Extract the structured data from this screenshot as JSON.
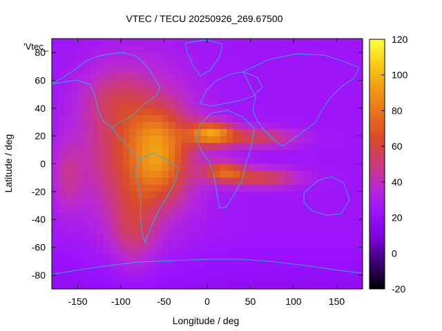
{
  "chart_data": {
    "type": "heatmap",
    "title": "VTEC / TECU 20250926_269.67500",
    "xlabel": "Longitude / deg",
    "ylabel": "Latitude / deg",
    "series_label": "'Vtec_",
    "xlim": [
      -180,
      180
    ],
    "ylim": [
      -90,
      90
    ],
    "x_ticks": [
      -150,
      -100,
      -50,
      0,
      50,
      100,
      150
    ],
    "y_ticks": [
      -80,
      -60,
      -40,
      -20,
      0,
      20,
      40,
      60,
      80
    ],
    "colorbar": {
      "range": [
        -20,
        120
      ],
      "ticks": [
        -20,
        0,
        20,
        40,
        60,
        80,
        100,
        120
      ],
      "palette": [
        "#000000",
        "#3a006a",
        "#7a00d4",
        "#9a12ff",
        "#b828d8",
        "#cc3a7a",
        "#d94a2a",
        "#e6701c",
        "#f09a14",
        "#f8cc14",
        "#ffff40"
      ]
    },
    "background_level": 24,
    "blobs": [
      {
        "lon": -80,
        "lat": 10,
        "lon_sigma": 45,
        "lat_sigma": 38,
        "amp": 40
      },
      {
        "lon": -55,
        "lat": -3,
        "lon_sigma": 22,
        "lat_sigma": 16,
        "amp": 28
      },
      {
        "lon": -55,
        "lat": 22,
        "lon_sigma": 24,
        "lat_sigma": 14,
        "amp": 22
      },
      {
        "lon": 5,
        "lat": 22,
        "lon_sigma": 18,
        "lat_sigma": 6,
        "amp": 55
      },
      {
        "lon": 55,
        "lat": 19,
        "lon_sigma": 35,
        "lat_sigma": 5,
        "amp": 32
      },
      {
        "lon": 20,
        "lat": -5,
        "lon_sigma": 16,
        "lat_sigma": 5,
        "amp": 42
      },
      {
        "lon": 62,
        "lat": -10,
        "lon_sigma": 32,
        "lat_sigma": 5,
        "amp": 35
      },
      {
        "lon": -162,
        "lat": -10,
        "lon_sigma": 12,
        "lat_sigma": 18,
        "amp": 16
      },
      {
        "lon": -85,
        "lat": -48,
        "lon_sigma": 18,
        "lat_sigma": 20,
        "amp": 20
      },
      {
        "lon": -110,
        "lat": 48,
        "lon_sigma": 25,
        "lat_sigma": 14,
        "amp": 12
      }
    ]
  }
}
